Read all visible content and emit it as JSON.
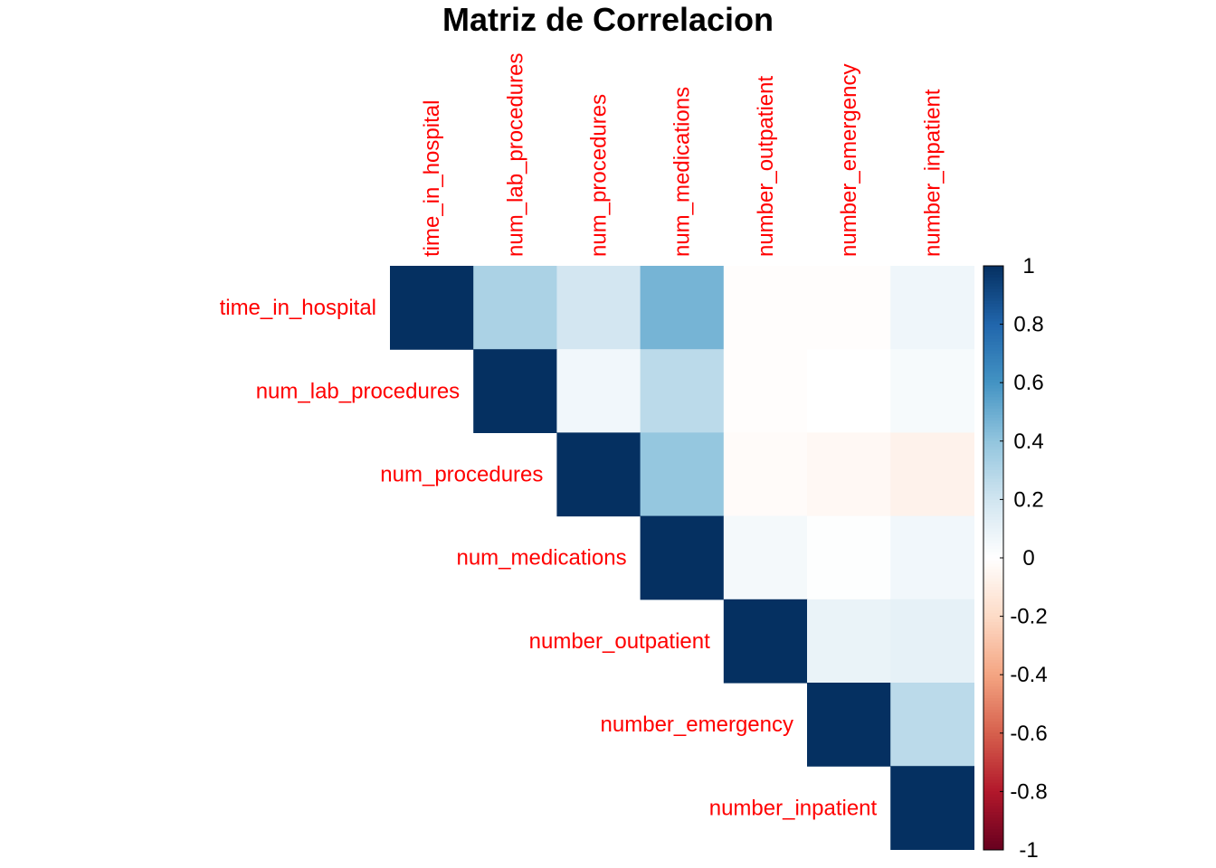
{
  "chart_data": {
    "type": "heatmap",
    "title": "Matriz de Correlacion",
    "variables": [
      "time_in_hospital",
      "num_lab_procedures",
      "num_procedures",
      "num_medications",
      "number_outpatient",
      "number_emergency",
      "number_inpatient"
    ],
    "matrix": [
      [
        1.0,
        0.32,
        0.19,
        0.47,
        -0.01,
        -0.01,
        0.07
      ],
      [
        0.32,
        1.0,
        0.06,
        0.27,
        -0.01,
        0.0,
        0.04
      ],
      [
        0.19,
        0.06,
        1.0,
        0.39,
        -0.02,
        -0.04,
        -0.07
      ],
      [
        0.47,
        0.27,
        0.39,
        1.0,
        0.05,
        0.01,
        0.06
      ],
      [
        -0.01,
        -0.01,
        -0.02,
        0.05,
        1.0,
        0.09,
        0.11
      ],
      [
        -0.01,
        0.0,
        -0.04,
        0.01,
        0.09,
        1.0,
        0.27
      ],
      [
        0.07,
        0.04,
        -0.07,
        0.06,
        0.11,
        0.27,
        1.0
      ]
    ],
    "shape": "upper-triangle",
    "label_color": "#ff0000",
    "colorbar": {
      "range": [
        -1,
        1
      ],
      "ticks": [
        1,
        0.8,
        0.6,
        0.4,
        0.2,
        0,
        -0.2,
        -0.4,
        -0.6,
        -0.8,
        -1
      ],
      "tick_labels": [
        "1",
        "0.8",
        "0.6",
        "0.4",
        "0.2",
        "0",
        "-0.2",
        "-0.4",
        "-0.6",
        "-0.8",
        "-1"
      ],
      "colors": [
        "#67001f",
        "#b2182b",
        "#d6604d",
        "#f4a582",
        "#fddbc7",
        "#ffffff",
        "#d1e5f0",
        "#92c5de",
        "#4393c3",
        "#2166ac",
        "#053061"
      ]
    },
    "grid": false
  }
}
